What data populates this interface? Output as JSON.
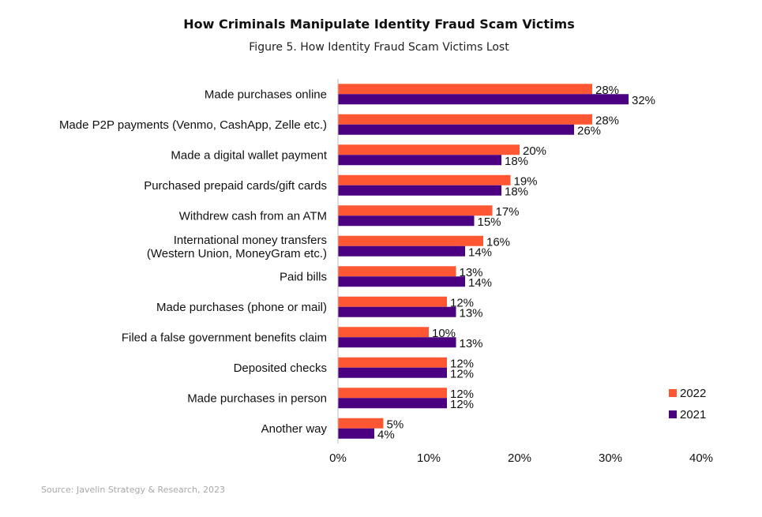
{
  "chart_data": {
    "type": "bar",
    "orientation": "horizontal",
    "title": "How Criminals Manipulate Identity Fraud Scam Victims",
    "subtitle": "Figure 5. How Identity Fraud Scam Victims Lost",
    "source": "Source: Javelin Strategy & Research, 2023",
    "categories": [
      [
        "Made purchases online"
      ],
      [
        "Made P2P payments (Venmo, CashApp, Zelle etc.)"
      ],
      [
        "Made a digital wallet payment"
      ],
      [
        "Purchased prepaid cards/gift cards"
      ],
      [
        "Withdrew cash from an ATM"
      ],
      [
        "International money transfers",
        "(Western Union, MoneyGram etc.)"
      ],
      [
        "Paid bills"
      ],
      [
        "Made purchases (phone or mail)"
      ],
      [
        "Filed a false government benefits claim"
      ],
      [
        "Deposited checks"
      ],
      [
        "Made purchases in person"
      ],
      [
        "Another way"
      ]
    ],
    "series": [
      {
        "name": "2022",
        "color": "#ff5733",
        "values": [
          28,
          28,
          20,
          19,
          17,
          16,
          13,
          12,
          10,
          12,
          12,
          5
        ]
      },
      {
        "name": "2021",
        "color": "#4b0082",
        "values": [
          32,
          26,
          18,
          18,
          15,
          14,
          14,
          13,
          13,
          12,
          12,
          4
        ]
      }
    ],
    "value_suffix": "%",
    "xlim": [
      0,
      40
    ],
    "xticks": [
      0,
      10,
      20,
      30,
      40
    ],
    "xtick_labels": [
      "0%",
      "10%",
      "20%",
      "30%",
      "40%"
    ],
    "grid": false,
    "legend_position": "right",
    "xlabel": "",
    "ylabel": ""
  }
}
